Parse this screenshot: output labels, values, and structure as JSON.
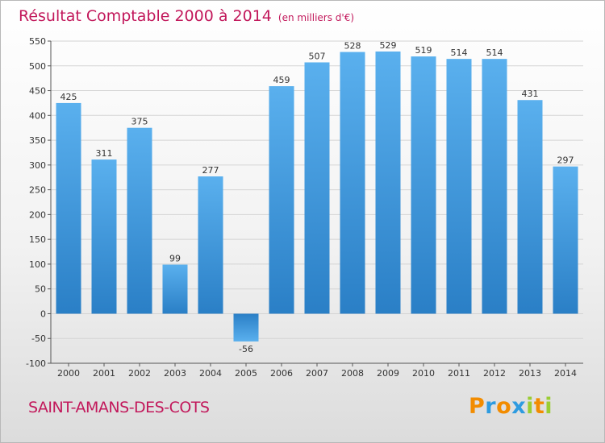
{
  "chart_data": {
    "type": "bar",
    "title": "Résultat Comptable 2000 à 2014",
    "subtitle": "(en milliers d'€)",
    "categories": [
      "2000",
      "2001",
      "2002",
      "2003",
      "2004",
      "2005",
      "2006",
      "2007",
      "2008",
      "2009",
      "2010",
      "2011",
      "2012",
      "2013",
      "2014"
    ],
    "values": [
      425,
      311,
      375,
      99,
      277,
      -56,
      459,
      507,
      528,
      529,
      519,
      514,
      514,
      431,
      297
    ],
    "ylim": [
      -100,
      550
    ],
    "yticks": [
      -100,
      -50,
      0,
      50,
      100,
      150,
      200,
      250,
      300,
      350,
      400,
      450,
      500,
      550
    ],
    "grid": true,
    "bar_color": "#3a8fd6"
  },
  "commune": "SAINT-AMANS-DES-COTS",
  "logo": {
    "text": "Proxiti",
    "letters": [
      {
        "ch": "P",
        "color": "#f28c00"
      },
      {
        "ch": "r",
        "color": "#2e9be0"
      },
      {
        "ch": "o",
        "color": "#f28c00"
      },
      {
        "ch": "x",
        "color": "#2e9be0"
      },
      {
        "ch": "i",
        "color": "#9acd32"
      },
      {
        "ch": "t",
        "color": "#f28c00"
      },
      {
        "ch": "i",
        "color": "#9acd32"
      }
    ]
  }
}
